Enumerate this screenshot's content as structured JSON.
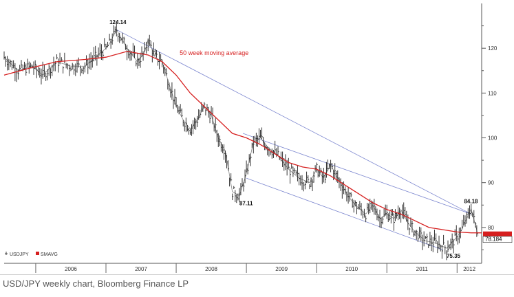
{
  "caption": "USD/JPY weekly chart, Bloomberg Finance LP",
  "chart_data": {
    "type": "line",
    "subtype": "weekly bar (OHLC) chart with moving average and trend channel",
    "title": "",
    "xlabel": "",
    "ylabel": "",
    "x_axis_labels": [
      "2006",
      "2007",
      "2008",
      "2009",
      "2010",
      "2011",
      "2012"
    ],
    "y_axis_ticks": [
      80,
      90,
      100,
      110,
      120
    ],
    "ylim": [
      72,
      130
    ],
    "xlim": [
      2005.55,
      2012.35
    ],
    "grid": false,
    "legend": {
      "position": "bottom-left",
      "items": [
        {
          "label": "USDJPY",
          "color": "#444444"
        },
        {
          "label": "SMAVG",
          "color": "#d61f1f"
        }
      ]
    },
    "last_price_label": "78.184",
    "colors": {
      "price": "#333333",
      "sma": "#d61f1f",
      "trend": "#7b86cf",
      "last_box": "#d61f1f"
    },
    "series": [
      {
        "name": "USDJPY",
        "x": [
          2005.55,
          2005.75,
          2005.95,
          2006.1,
          2006.3,
          2006.5,
          2006.7,
          2006.85,
          2007.0,
          2007.05,
          2007.15,
          2007.3,
          2007.45,
          2007.55,
          2007.6,
          2007.7,
          2007.8,
          2007.9,
          2008.0,
          2008.1,
          2008.2,
          2008.3,
          2008.4,
          2008.5,
          2008.6,
          2008.7,
          2008.8,
          2008.9,
          2009.0,
          2009.1,
          2009.2,
          2009.3,
          2009.45,
          2009.6,
          2009.75,
          2009.9,
          2010.0,
          2010.1,
          2010.2,
          2010.3,
          2010.45,
          2010.55,
          2010.7,
          2010.8,
          2010.9,
          2011.0,
          2011.1,
          2011.2,
          2011.3,
          2011.4,
          2011.55,
          2011.7,
          2011.85,
          2011.95,
          2012.05,
          2012.2,
          2012.3
        ],
        "values": [
          118,
          115,
          116,
          114,
          117,
          116,
          116,
          118,
          120,
          121,
          124.14,
          120,
          117,
          119,
          122,
          118,
          117,
          112,
          107,
          104,
          102,
          104,
          107,
          105,
          100,
          97,
          88,
          87.11,
          92,
          99,
          100,
          98,
          96,
          93,
          91,
          90,
          93,
          91,
          94,
          91,
          87,
          85,
          83,
          85,
          82,
          83,
          82,
          84,
          81,
          79,
          77,
          76.5,
          75.35,
          77,
          79,
          84.18,
          78.184
        ]
      },
      {
        "name": "SMAVG",
        "x": [
          2005.55,
          2005.9,
          2006.3,
          2006.7,
          2007.0,
          2007.3,
          2007.6,
          2007.8,
          2008.0,
          2008.2,
          2008.4,
          2008.6,
          2008.8,
          2009.0,
          2009.2,
          2009.4,
          2009.6,
          2009.8,
          2010.0,
          2010.2,
          2010.4,
          2010.6,
          2010.8,
          2011.0,
          2011.2,
          2011.4,
          2011.6,
          2011.8,
          2012.0,
          2012.2,
          2012.35
        ],
        "values": [
          114,
          115.5,
          117,
          117.5,
          118,
          119.3,
          118.5,
          117,
          114,
          110,
          107,
          104,
          101,
          100,
          98.5,
          96.5,
          94.5,
          93.5,
          93,
          91.5,
          89.5,
          87.5,
          85.5,
          84,
          83,
          81.5,
          80,
          79.5,
          79,
          78.8,
          78.8
        ]
      }
    ],
    "trend_lines": [
      {
        "from": [
          2007.15,
          124.14
        ],
        "to": [
          2012.2,
          83
        ]
      },
      {
        "from": [
          2008.95,
          101
        ],
        "to": [
          2012.2,
          83
        ]
      },
      {
        "from": [
          2009.0,
          91
        ],
        "to": [
          2011.8,
          75
        ]
      }
    ],
    "annotations": [
      {
        "text": "124.14",
        "x": 2007.05,
        "y": 124.14,
        "anchor": "above"
      },
      {
        "text": "50 week moving average",
        "x": 2008.05,
        "y": 118.5,
        "color": "#d61f1f"
      },
      {
        "text": "87.11",
        "x": 2008.9,
        "y": 87.11,
        "anchor": "below"
      },
      {
        "text": "75.35",
        "x": 2011.85,
        "y": 75.35,
        "anchor": "below"
      },
      {
        "text": "84.18",
        "x": 2012.1,
        "y": 84.18,
        "anchor": "above"
      }
    ]
  }
}
